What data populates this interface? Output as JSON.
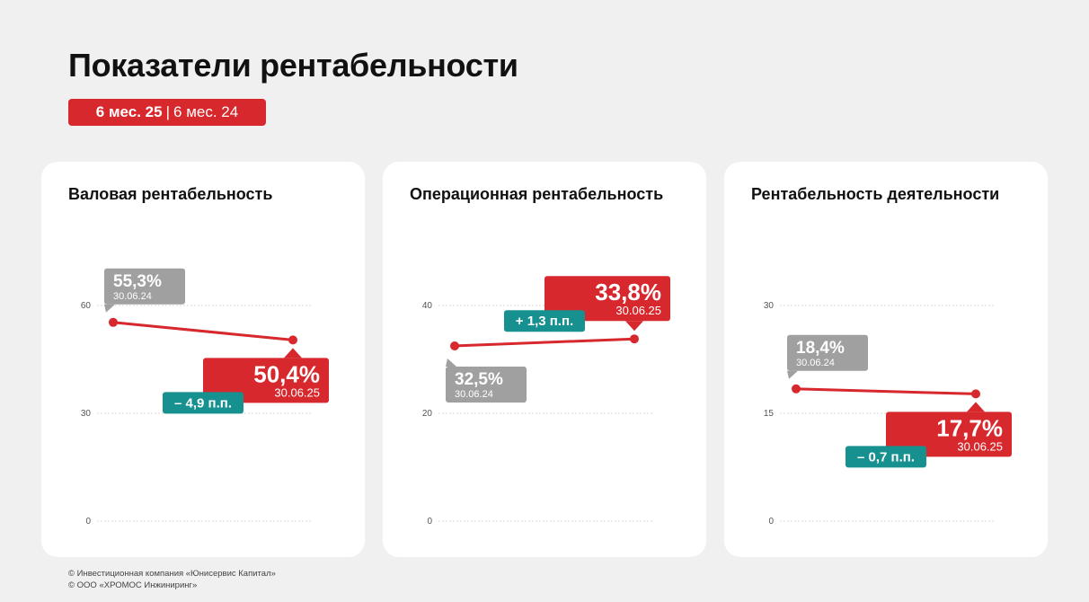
{
  "title": "Показатели рентабельности",
  "period": {
    "current": "6 мес. 25",
    "separator": "|",
    "previous": "6 мес. 24"
  },
  "colors": {
    "accent": "#d6282d",
    "previous": "#a0a0a0",
    "change": "#17918f",
    "grid": "#d8d8d8"
  },
  "cards": [
    {
      "title": "Валовая рентабельность"
    },
    {
      "title": "Операционная рентабельность"
    },
    {
      "title": "Рентабельность деятельности"
    }
  ],
  "chart_data": [
    {
      "type": "line",
      "title": "Валовая рентабельность",
      "ylim": [
        0,
        60
      ],
      "yticks": [
        0,
        30,
        60
      ],
      "ytick_labels": [
        "0",
        "30",
        "60"
      ],
      "grid": true,
      "x": [
        "30.06.24",
        "30.06.25"
      ],
      "values": [
        55.3,
        50.4
      ],
      "labels": [
        "55,3%",
        "50,4%"
      ],
      "dates": [
        "30.06.24",
        "30.06.25"
      ],
      "change": "– 4,9 п.п."
    },
    {
      "type": "line",
      "title": "Операционная рентабельность",
      "ylim": [
        0,
        40
      ],
      "yticks": [
        0,
        20,
        40
      ],
      "ytick_labels": [
        "0",
        "20",
        "40"
      ],
      "grid": true,
      "x": [
        "30.06.24",
        "30.06.25"
      ],
      "values": [
        32.5,
        33.8
      ],
      "labels": [
        "32,5%",
        "33,8%"
      ],
      "dates": [
        "30.06.24",
        "30.06.25"
      ],
      "change": "+ 1,3 п.п."
    },
    {
      "type": "line",
      "title": "Рентабельность деятельности",
      "ylim": [
        0,
        30
      ],
      "yticks": [
        0,
        15,
        30
      ],
      "ytick_labels": [
        "0",
        "15",
        "30"
      ],
      "grid": true,
      "x": [
        "30.06.24",
        "30.06.25"
      ],
      "values": [
        18.4,
        17.7
      ],
      "labels": [
        "18,4%",
        "17,7%"
      ],
      "dates": [
        "30.06.24",
        "30.06.25"
      ],
      "change": "– 0,7 п.п."
    }
  ],
  "footer": [
    "© Инвестиционная компания «Юнисервис Капитал»",
    "© ООО «ХРОМОС Инжиниринг»"
  ]
}
